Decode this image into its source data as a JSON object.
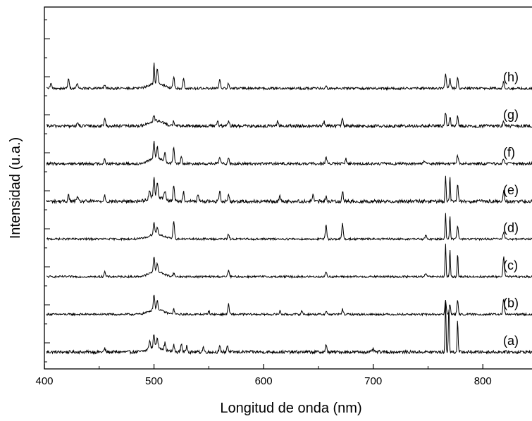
{
  "chart_data": {
    "type": "line",
    "xlabel": "Longitud de onda (nm)",
    "ylabel": "Intensidad (u.a.)",
    "xlim": [
      400,
      850
    ],
    "x_ticks": [
      400,
      500,
      600,
      700,
      800
    ],
    "grid": false,
    "legend": "none",
    "line_color": "#000000",
    "series": [
      {
        "name": "(a)",
        "offset": 1.0,
        "baseline_noise": 0.9,
        "peaks": [
          [
            455,
            2
          ],
          [
            496,
            5
          ],
          [
            500,
            8
          ],
          [
            503,
            5
          ],
          [
            510,
            4
          ],
          [
            518,
            4
          ],
          [
            525,
            5
          ],
          [
            530,
            4
          ],
          [
            545,
            3
          ],
          [
            560,
            3
          ],
          [
            567,
            4
          ],
          [
            657,
            4
          ],
          [
            700,
            2
          ],
          [
            766,
            30
          ],
          [
            769,
            28
          ],
          [
            777,
            19
          ]
        ]
      },
      {
        "name": "(b)",
        "offset": 2.0,
        "baseline_noise": 0.6,
        "peaks": [
          [
            500,
            9
          ],
          [
            503,
            5
          ],
          [
            518,
            3
          ],
          [
            550,
            2
          ],
          [
            568,
            6
          ],
          [
            615,
            2
          ],
          [
            635,
            2
          ],
          [
            657,
            2
          ],
          [
            672,
            3
          ],
          [
            766,
            8
          ],
          [
            770,
            6
          ],
          [
            777,
            8
          ],
          [
            819,
            9
          ]
        ]
      },
      {
        "name": "(c)",
        "offset": 3.0,
        "baseline_noise": 0.6,
        "peaks": [
          [
            455,
            3
          ],
          [
            500,
            9
          ],
          [
            503,
            5
          ],
          [
            518,
            2
          ],
          [
            568,
            4
          ],
          [
            657,
            3
          ],
          [
            748,
            2
          ],
          [
            766,
            19
          ],
          [
            770,
            16
          ],
          [
            777,
            14
          ],
          [
            819,
            12
          ]
        ]
      },
      {
        "name": "(d)",
        "offset": 4.0,
        "baseline_noise": 0.6,
        "peaks": [
          [
            500,
            7
          ],
          [
            503,
            4
          ],
          [
            518,
            11
          ],
          [
            568,
            3
          ],
          [
            657,
            8
          ],
          [
            672,
            9
          ],
          [
            748,
            2
          ],
          [
            766,
            16
          ],
          [
            770,
            14
          ],
          [
            777,
            8
          ],
          [
            819,
            4
          ]
        ]
      },
      {
        "name": "(e)",
        "offset": 5.0,
        "baseline_noise": 1.0,
        "peaks": [
          [
            422,
            4
          ],
          [
            430,
            3
          ],
          [
            455,
            4
          ],
          [
            496,
            5
          ],
          [
            500,
            11
          ],
          [
            503,
            8
          ],
          [
            510,
            5
          ],
          [
            518,
            10
          ],
          [
            527,
            6
          ],
          [
            540,
            4
          ],
          [
            560,
            7
          ],
          [
            568,
            4
          ],
          [
            615,
            3
          ],
          [
            645,
            4
          ],
          [
            657,
            3
          ],
          [
            672,
            6
          ],
          [
            766,
            16
          ],
          [
            770,
            14
          ],
          [
            777,
            10
          ],
          [
            819,
            6
          ]
        ]
      },
      {
        "name": "(f)",
        "offset": 6.0,
        "baseline_noise": 0.8,
        "peaks": [
          [
            455,
            3
          ],
          [
            500,
            10
          ],
          [
            503,
            7
          ],
          [
            510,
            5
          ],
          [
            518,
            10
          ],
          [
            525,
            4
          ],
          [
            560,
            4
          ],
          [
            568,
            4
          ],
          [
            657,
            4
          ],
          [
            675,
            3
          ],
          [
            747,
            2
          ],
          [
            777,
            5
          ],
          [
            819,
            3
          ]
        ]
      },
      {
        "name": "(g)",
        "offset": 7.0,
        "baseline_noise": 0.9,
        "peaks": [
          [
            430,
            2
          ],
          [
            455,
            5
          ],
          [
            500,
            4
          ],
          [
            518,
            3
          ],
          [
            558,
            3
          ],
          [
            568,
            3
          ],
          [
            613,
            3
          ],
          [
            655,
            3
          ],
          [
            672,
            5
          ],
          [
            766,
            8
          ],
          [
            770,
            6
          ],
          [
            777,
            6
          ],
          [
            819,
            3
          ]
        ]
      },
      {
        "name": "(h)",
        "offset": 8.0,
        "baseline_noise": 0.7,
        "peaks": [
          [
            406,
            3
          ],
          [
            422,
            6
          ],
          [
            430,
            3
          ],
          [
            455,
            2
          ],
          [
            500,
            13
          ],
          [
            503,
            9
          ],
          [
            518,
            7
          ],
          [
            527,
            6
          ],
          [
            560,
            5
          ],
          [
            568,
            3
          ],
          [
            657,
            2
          ],
          [
            766,
            9
          ],
          [
            770,
            6
          ],
          [
            777,
            6
          ],
          [
            819,
            4
          ]
        ]
      }
    ]
  }
}
